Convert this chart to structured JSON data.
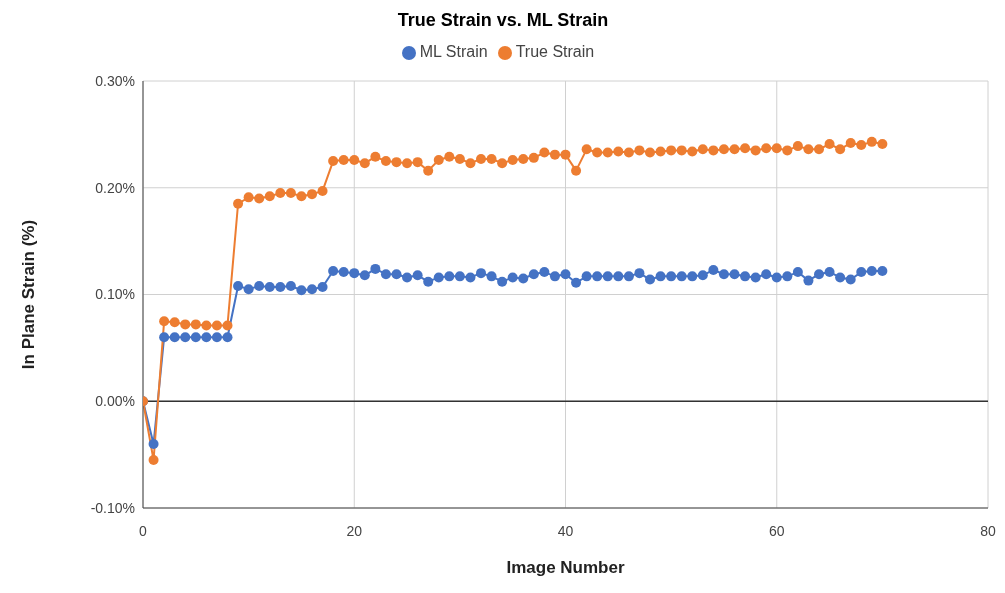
{
  "chart_data": {
    "type": "line",
    "title": "True Strain vs. ML Strain",
    "xlabel": "Image Number",
    "ylabel": "In Plane Strain (%)",
    "x": [
      0,
      1,
      2,
      3,
      4,
      5,
      6,
      7,
      8,
      9,
      10,
      11,
      12,
      13,
      14,
      15,
      16,
      17,
      18,
      19,
      20,
      21,
      22,
      23,
      24,
      25,
      26,
      27,
      28,
      29,
      30,
      31,
      32,
      33,
      34,
      35,
      36,
      37,
      38,
      39,
      40,
      41,
      42,
      43,
      44,
      45,
      46,
      47,
      48,
      49,
      50,
      51,
      52,
      53,
      54,
      55,
      56,
      57,
      58,
      59,
      60,
      61,
      62,
      63,
      64,
      65,
      66,
      67,
      68,
      69,
      70
    ],
    "series": [
      {
        "name": "ML Strain",
        "color": "#4472c4",
        "values": [
          0,
          -0.04,
          0.06,
          0.06,
          0.06,
          0.06,
          0.06,
          0.06,
          0.06,
          0.108,
          0.105,
          0.108,
          0.107,
          0.107,
          0.108,
          0.104,
          0.105,
          0.107,
          0.122,
          0.121,
          0.12,
          0.118,
          0.124,
          0.119,
          0.119,
          0.116,
          0.118,
          0.112,
          0.116,
          0.117,
          0.117,
          0.116,
          0.12,
          0.117,
          0.112,
          0.116,
          0.115,
          0.119,
          0.121,
          0.117,
          0.119,
          0.111,
          0.117,
          0.117,
          0.117,
          0.117,
          0.117,
          0.12,
          0.114,
          0.117,
          0.117,
          0.117,
          0.117,
          0.118,
          0.123,
          0.119,
          0.119,
          0.117,
          0.116,
          0.119,
          0.116,
          0.117,
          0.121,
          0.113,
          0.119,
          0.121,
          0.116,
          0.114,
          0.121,
          0.122,
          0.122
        ]
      },
      {
        "name": "True Strain",
        "color": "#ed7d31",
        "values": [
          0,
          -0.055,
          0.075,
          0.074,
          0.072,
          0.072,
          0.071,
          0.071,
          0.071,
          0.185,
          0.191,
          0.19,
          0.192,
          0.195,
          0.195,
          0.192,
          0.194,
          0.197,
          0.225,
          0.226,
          0.226,
          0.223,
          0.229,
          0.225,
          0.224,
          0.223,
          0.224,
          0.216,
          0.226,
          0.229,
          0.227,
          0.223,
          0.227,
          0.227,
          0.223,
          0.226,
          0.227,
          0.228,
          0.233,
          0.231,
          0.231,
          0.216,
          0.236,
          0.233,
          0.233,
          0.234,
          0.233,
          0.235,
          0.233,
          0.234,
          0.235,
          0.235,
          0.234,
          0.236,
          0.235,
          0.236,
          0.236,
          0.237,
          0.235,
          0.237,
          0.237,
          0.235,
          0.239,
          0.236,
          0.236,
          0.241,
          0.236,
          0.242,
          0.24,
          0.243,
          0.241
        ]
      }
    ],
    "xlim": [
      0,
      80
    ],
    "xticks": [
      0,
      20,
      40,
      60,
      80
    ],
    "ylim": [
      -0.1,
      0.3
    ],
    "yticks": [
      {
        "value": -0.1,
        "label": "-0.10%"
      },
      {
        "value": 0,
        "label": "0.00%"
      },
      {
        "value": 0.1,
        "label": "0.10%"
      },
      {
        "value": 0.2,
        "label": "0.20%"
      },
      {
        "value": 0.3,
        "label": "0.30%"
      }
    ],
    "ref_lines": [
      {
        "axis": "y",
        "value": 0,
        "color": "#333333"
      }
    ],
    "grid": true,
    "legend": "top",
    "marker": "circle",
    "line_style": "solid"
  }
}
